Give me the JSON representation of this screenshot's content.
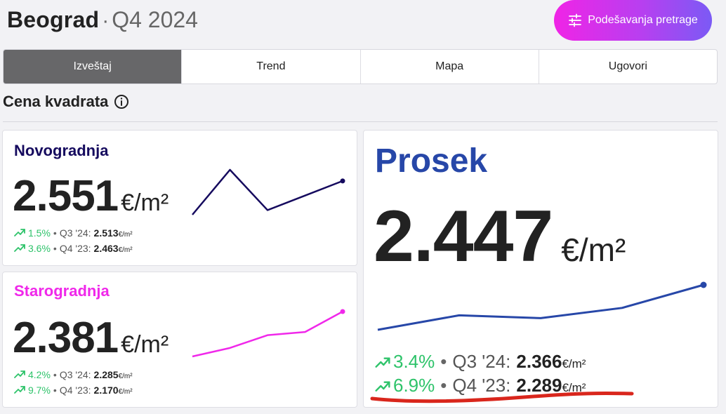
{
  "header": {
    "city": "Beograd",
    "dot": "·",
    "period": "Q4 2024"
  },
  "settings_button": {
    "label": "Podešavanja pretrage"
  },
  "tabs": [
    {
      "label": "Izveštaj",
      "active": true
    },
    {
      "label": "Trend",
      "active": false
    },
    {
      "label": "Mapa",
      "active": false
    },
    {
      "label": "Ugovori",
      "active": false
    }
  ],
  "section": {
    "title": "Cena kvadrata",
    "icon": "info-icon"
  },
  "cards": {
    "new": {
      "title": "Novogradnja",
      "value": "2.551",
      "unit": "€/m²",
      "color": "#150a5e",
      "stats": [
        {
          "pct": "1.5%",
          "period": "Q3 '24:",
          "value": "2.513",
          "unit": "€/m²"
        },
        {
          "pct": "3.6%",
          "period": "Q4 '23:",
          "value": "2.463",
          "unit": "€/m²"
        }
      ]
    },
    "old": {
      "title": "Starogradnja",
      "value": "2.381",
      "unit": "€/m²",
      "color": "#f028ea",
      "stats": [
        {
          "pct": "4.2%",
          "period": "Q3 '24:",
          "value": "2.285",
          "unit": "€/m²"
        },
        {
          "pct": "9.7%",
          "period": "Q4 '23:",
          "value": "2.170",
          "unit": "€/m²"
        }
      ]
    },
    "avg": {
      "title": "Prosek",
      "value": "2.447",
      "unit": "€/m²",
      "color": "#2747a8",
      "stats": [
        {
          "pct": "3.4%",
          "period": "Q3 '24:",
          "value": "2.366",
          "unit": "€/m²"
        },
        {
          "pct": "6.9%",
          "period": "Q4 '23:",
          "value": "2.289",
          "unit": "€/m²"
        }
      ]
    }
  },
  "chart_data": [
    {
      "type": "line",
      "series": [
        {
          "values": [
            2463,
            2580,
            2475,
            2513,
            2551
          ]
        }
      ],
      "color": "#150a5e"
    },
    {
      "type": "line",
      "series": [
        {
          "values": [
            2170,
            2210,
            2270,
            2285,
            2381
          ]
        }
      ],
      "color": "#f028ea"
    },
    {
      "type": "line",
      "series": [
        {
          "values": [
            2289,
            2340,
            2330,
            2366,
            2447
          ]
        }
      ],
      "color": "#2747a8"
    }
  ],
  "colors": {
    "accent_up": "#2ec36a",
    "annotation": "#d9261c"
  }
}
